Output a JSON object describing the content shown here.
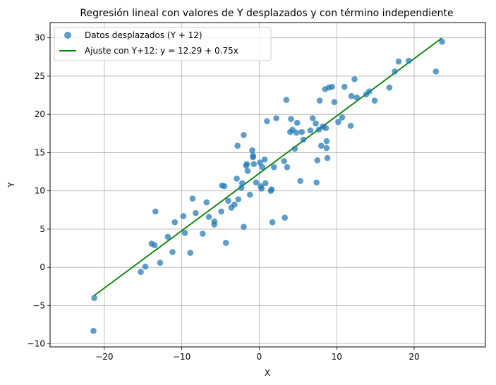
{
  "chart_data": {
    "type": "scatter",
    "title": "Regresión lineal con valores de Y desplazados y con término independiente",
    "xlabel": "X",
    "ylabel": "Y",
    "xlim": [
      -27,
      29.2
    ],
    "ylim": [
      -10.4,
      32
    ],
    "xticks": [
      -20,
      -10,
      0,
      10,
      20
    ],
    "yticks": [
      -10,
      -5,
      0,
      5,
      10,
      15,
      20,
      25,
      30
    ],
    "grid": true,
    "legend_position": "top-left",
    "colors": {
      "points": "#1f77b4",
      "line": "#008000"
    },
    "series": [
      {
        "name": "Datos desplazados (Y + 12)",
        "kind": "scatter",
        "points": [
          [
            -21.4,
            -8.3
          ],
          [
            -21.3,
            -4.0
          ],
          [
            -15.3,
            -0.6
          ],
          [
            -14.7,
            0.1
          ],
          [
            -13.9,
            3.1
          ],
          [
            -13.5,
            2.9
          ],
          [
            -13.4,
            7.3
          ],
          [
            -12.8,
            0.6
          ],
          [
            -11.8,
            4.0
          ],
          [
            -11.2,
            2.0
          ],
          [
            -10.9,
            5.9
          ],
          [
            -9.8,
            6.7
          ],
          [
            -9.6,
            4.5
          ],
          [
            -8.9,
            1.9
          ],
          [
            -8.6,
            9.0
          ],
          [
            -8.2,
            7.1
          ],
          [
            -7.3,
            4.4
          ],
          [
            -6.8,
            8.5
          ],
          [
            -6.5,
            6.6
          ],
          [
            -5.8,
            5.6
          ],
          [
            -5.8,
            6.0
          ],
          [
            -4.9,
            7.3
          ],
          [
            -4.8,
            10.7
          ],
          [
            -4.5,
            10.6
          ],
          [
            -4.3,
            3.2
          ],
          [
            -4.0,
            8.7
          ],
          [
            -3.6,
            7.8
          ],
          [
            -3.2,
            8.2
          ],
          [
            -2.9,
            11.6
          ],
          [
            -2.8,
            15.9
          ],
          [
            -2.7,
            8.9
          ],
          [
            -2.3,
            10.4
          ],
          [
            -2.2,
            11.0
          ],
          [
            -2.0,
            17.3
          ],
          [
            -2.0,
            5.3
          ],
          [
            -1.7,
            13.3
          ],
          [
            -1.6,
            13.5
          ],
          [
            -1.5,
            12.6
          ],
          [
            -1.2,
            9.5
          ],
          [
            -0.9,
            15.3
          ],
          [
            -0.8,
            14.4
          ],
          [
            -0.8,
            14.6
          ],
          [
            -0.7,
            13.5
          ],
          [
            -0.4,
            11.1
          ],
          [
            0.1,
            13.7
          ],
          [
            0.2,
            10.6
          ],
          [
            0.3,
            10.3
          ],
          [
            0.4,
            13.1
          ],
          [
            0.7,
            14.1
          ],
          [
            0.8,
            11.0
          ],
          [
            1.0,
            19.1
          ],
          [
            1.5,
            10.0
          ],
          [
            1.6,
            10.2
          ],
          [
            1.7,
            5.9
          ],
          [
            1.9,
            13.1
          ],
          [
            2.2,
            19.5
          ],
          [
            3.2,
            13.9
          ],
          [
            3.3,
            6.5
          ],
          [
            3.5,
            21.9
          ],
          [
            3.6,
            13.1
          ],
          [
            4.0,
            17.7
          ],
          [
            4.1,
            19.4
          ],
          [
            4.3,
            18.0
          ],
          [
            4.6,
            15.5
          ],
          [
            4.8,
            17.6
          ],
          [
            4.9,
            18.9
          ],
          [
            5.3,
            11.3
          ],
          [
            5.5,
            17.7
          ],
          [
            5.7,
            16.7
          ],
          [
            6.6,
            17.9
          ],
          [
            6.9,
            19.5
          ],
          [
            7.3,
            18.8
          ],
          [
            7.4,
            11.1
          ],
          [
            7.5,
            14.0
          ],
          [
            7.7,
            18.0
          ],
          [
            7.8,
            21.8
          ],
          [
            8.0,
            15.9
          ],
          [
            8.2,
            18.4
          ],
          [
            8.5,
            23.3
          ],
          [
            8.6,
            18.2
          ],
          [
            8.7,
            15.6
          ],
          [
            8.7,
            16.5
          ],
          [
            8.8,
            14.3
          ],
          [
            9.0,
            23.5
          ],
          [
            9.4,
            23.6
          ],
          [
            9.7,
            21.6
          ],
          [
            10.2,
            19.0
          ],
          [
            10.7,
            19.6
          ],
          [
            11.0,
            23.6
          ],
          [
            11.8,
            18.5
          ],
          [
            11.9,
            22.4
          ],
          [
            12.3,
            24.6
          ],
          [
            12.6,
            22.2
          ],
          [
            13.8,
            22.6
          ],
          [
            14.2,
            23.0
          ],
          [
            14.9,
            21.8
          ],
          [
            16.8,
            23.5
          ],
          [
            17.5,
            25.6
          ],
          [
            18.0,
            26.9
          ],
          [
            19.3,
            27.0
          ],
          [
            22.8,
            25.6
          ],
          [
            23.6,
            29.5
          ]
        ]
      },
      {
        "name": "Ajuste con Y+12: y = 12.29 + 0.75x",
        "kind": "line",
        "intercept": 12.29,
        "slope": 0.75,
        "x_range": [
          -21.4,
          23.6
        ]
      }
    ]
  }
}
